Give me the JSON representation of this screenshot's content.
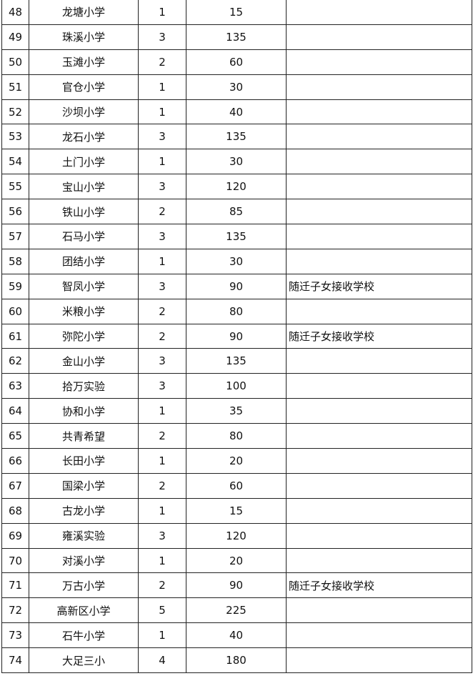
{
  "rows": [
    {
      "no": "48",
      "school": "龙塘小学",
      "classes": "1",
      "students": "15",
      "note": ""
    },
    {
      "no": "49",
      "school": "珠溪小学",
      "classes": "3",
      "students": "135",
      "note": ""
    },
    {
      "no": "50",
      "school": "玉滩小学",
      "classes": "2",
      "students": "60",
      "note": ""
    },
    {
      "no": "51",
      "school": "官仓小学",
      "classes": "1",
      "students": "30",
      "note": ""
    },
    {
      "no": "52",
      "school": "沙坝小学",
      "classes": "1",
      "students": "40",
      "note": ""
    },
    {
      "no": "53",
      "school": "龙石小学",
      "classes": "3",
      "students": "135",
      "note": ""
    },
    {
      "no": "54",
      "school": "土门小学",
      "classes": "1",
      "students": "30",
      "note": ""
    },
    {
      "no": "55",
      "school": "宝山小学",
      "classes": "3",
      "students": "120",
      "note": ""
    },
    {
      "no": "56",
      "school": "铁山小学",
      "classes": "2",
      "students": "85",
      "note": ""
    },
    {
      "no": "57",
      "school": "石马小学",
      "classes": "3",
      "students": "135",
      "note": ""
    },
    {
      "no": "58",
      "school": "团结小学",
      "classes": "1",
      "students": "30",
      "note": ""
    },
    {
      "no": "59",
      "school": "智凤小学",
      "classes": "3",
      "students": "90",
      "note": "随迁子女接收学校"
    },
    {
      "no": "60",
      "school": "米粮小学",
      "classes": "2",
      "students": "80",
      "note": ""
    },
    {
      "no": "61",
      "school": "弥陀小学",
      "classes": "2",
      "students": "90",
      "note": "随迁子女接收学校"
    },
    {
      "no": "62",
      "school": "金山小学",
      "classes": "3",
      "students": "135",
      "note": ""
    },
    {
      "no": "63",
      "school": "拾万实验",
      "classes": "3",
      "students": "100",
      "note": ""
    },
    {
      "no": "64",
      "school": "协和小学",
      "classes": "1",
      "students": "35",
      "note": ""
    },
    {
      "no": "65",
      "school": "共青希望",
      "classes": "2",
      "students": "80",
      "note": ""
    },
    {
      "no": "66",
      "school": "长田小学",
      "classes": "1",
      "students": "20",
      "note": ""
    },
    {
      "no": "67",
      "school": "国梁小学",
      "classes": "2",
      "students": "60",
      "note": ""
    },
    {
      "no": "68",
      "school": "古龙小学",
      "classes": "1",
      "students": "15",
      "note": ""
    },
    {
      "no": "69",
      "school": "雍溪实验",
      "classes": "3",
      "students": "120",
      "note": ""
    },
    {
      "no": "70",
      "school": "对溪小学",
      "classes": "1",
      "students": "20",
      "note": ""
    },
    {
      "no": "71",
      "school": "万古小学",
      "classes": "2",
      "students": "90",
      "note": "随迁子女接收学校"
    },
    {
      "no": "72",
      "school": "高新区小学",
      "classes": "5",
      "students": "225",
      "note": ""
    },
    {
      "no": "73",
      "school": "石牛小学",
      "classes": "1",
      "students": "40",
      "note": ""
    },
    {
      "no": "74",
      "school": "大足三小",
      "classes": "4",
      "students": "180",
      "note": ""
    }
  ]
}
